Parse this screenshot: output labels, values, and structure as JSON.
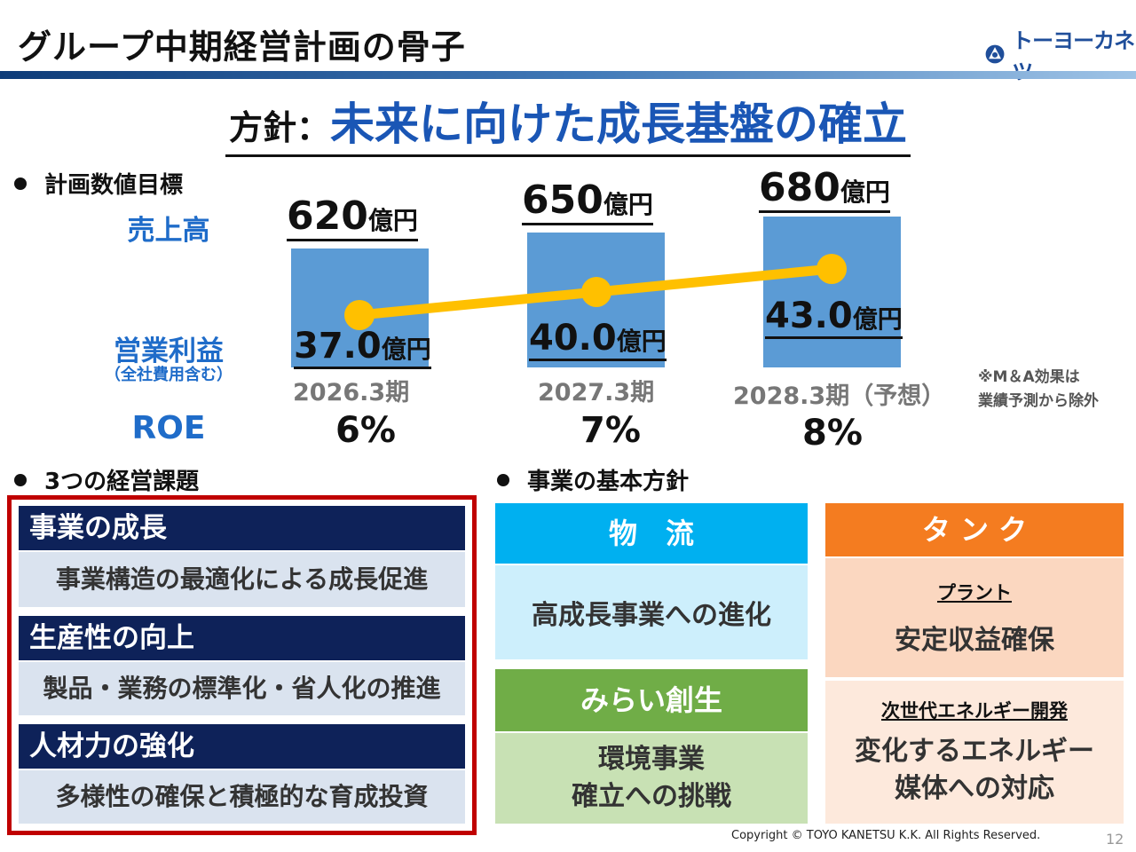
{
  "header": {
    "title": "グループ中期経営計画の骨子",
    "logo_text": "トーヨーカネツ"
  },
  "policy": {
    "label": "方針：",
    "text": "未来に向けた成長基盤の確立"
  },
  "targets": {
    "heading": "計画数値目標",
    "sales_label": "売上高",
    "op_label": "営業利益",
    "op_sublabel": "（全社費用含む）",
    "roe_label": "ROE",
    "unit": "億円",
    "periods": [
      {
        "label": "2026.3期",
        "sales": "620",
        "op": "37.0",
        "roe": "6%"
      },
      {
        "label": "2027.3期",
        "sales": "650",
        "op": "40.0",
        "roe": "7%"
      },
      {
        "label": "2028.3期（予想）",
        "sales": "680",
        "op": "43.0",
        "roe": "8%"
      }
    ],
    "note_line1": "※M＆A効果は",
    "note_line2": "業績予測から除外"
  },
  "chart_data": {
    "type": "bar",
    "title": "計画数値目標",
    "categories": [
      "2026.3期",
      "2027.3期",
      "2028.3期（予想）"
    ],
    "series": [
      {
        "name": "売上高（億円）",
        "type": "bar",
        "values": [
          620,
          650,
          680
        ]
      },
      {
        "name": "営業利益（億円）",
        "type": "line",
        "values": [
          37.0,
          40.0,
          43.0
        ]
      }
    ],
    "extra": {
      "ROE": [
        "6%",
        "7%",
        "8%"
      ]
    },
    "xlabel": "",
    "ylabel": ""
  },
  "issues": {
    "heading": "3つの経営課題",
    "items": [
      {
        "head": "事業の成長",
        "body": "事業構造の最適化による成長促進"
      },
      {
        "head": "生産性の向上",
        "body": "製品・業務の標準化・省人化の推進"
      },
      {
        "head": "人材力の強化",
        "body": "多様性の確保と積極的な育成投資"
      }
    ]
  },
  "policies": {
    "heading": "事業の基本方針",
    "logistics": {
      "head": "物　流",
      "body": "高成長事業への進化",
      "color": "#00b0f0"
    },
    "mirai": {
      "head": "みらい創生",
      "body_line1": "環境事業",
      "body_line2": "確立への挑戦",
      "color": "#70ad47"
    },
    "tank": {
      "head": "タ ン ク",
      "color": "#f47c20",
      "plant_sub": "プラント",
      "plant_body": "安定収益確保",
      "energy_sub": "次世代エネルギー開発",
      "energy_line1": "変化するエネルギー",
      "energy_line2": "媒体への対応"
    }
  },
  "footer": {
    "copyright": "Copyright ©  TOYO KANETSU K.K. All Rights Reserved.",
    "page": "12"
  },
  "colors": {
    "accent_blue": "#1a56b5",
    "bar_blue": "#5b9bd5",
    "line_gold": "#ffc000",
    "navy": "#0e2259",
    "red_frame": "#c00000"
  }
}
